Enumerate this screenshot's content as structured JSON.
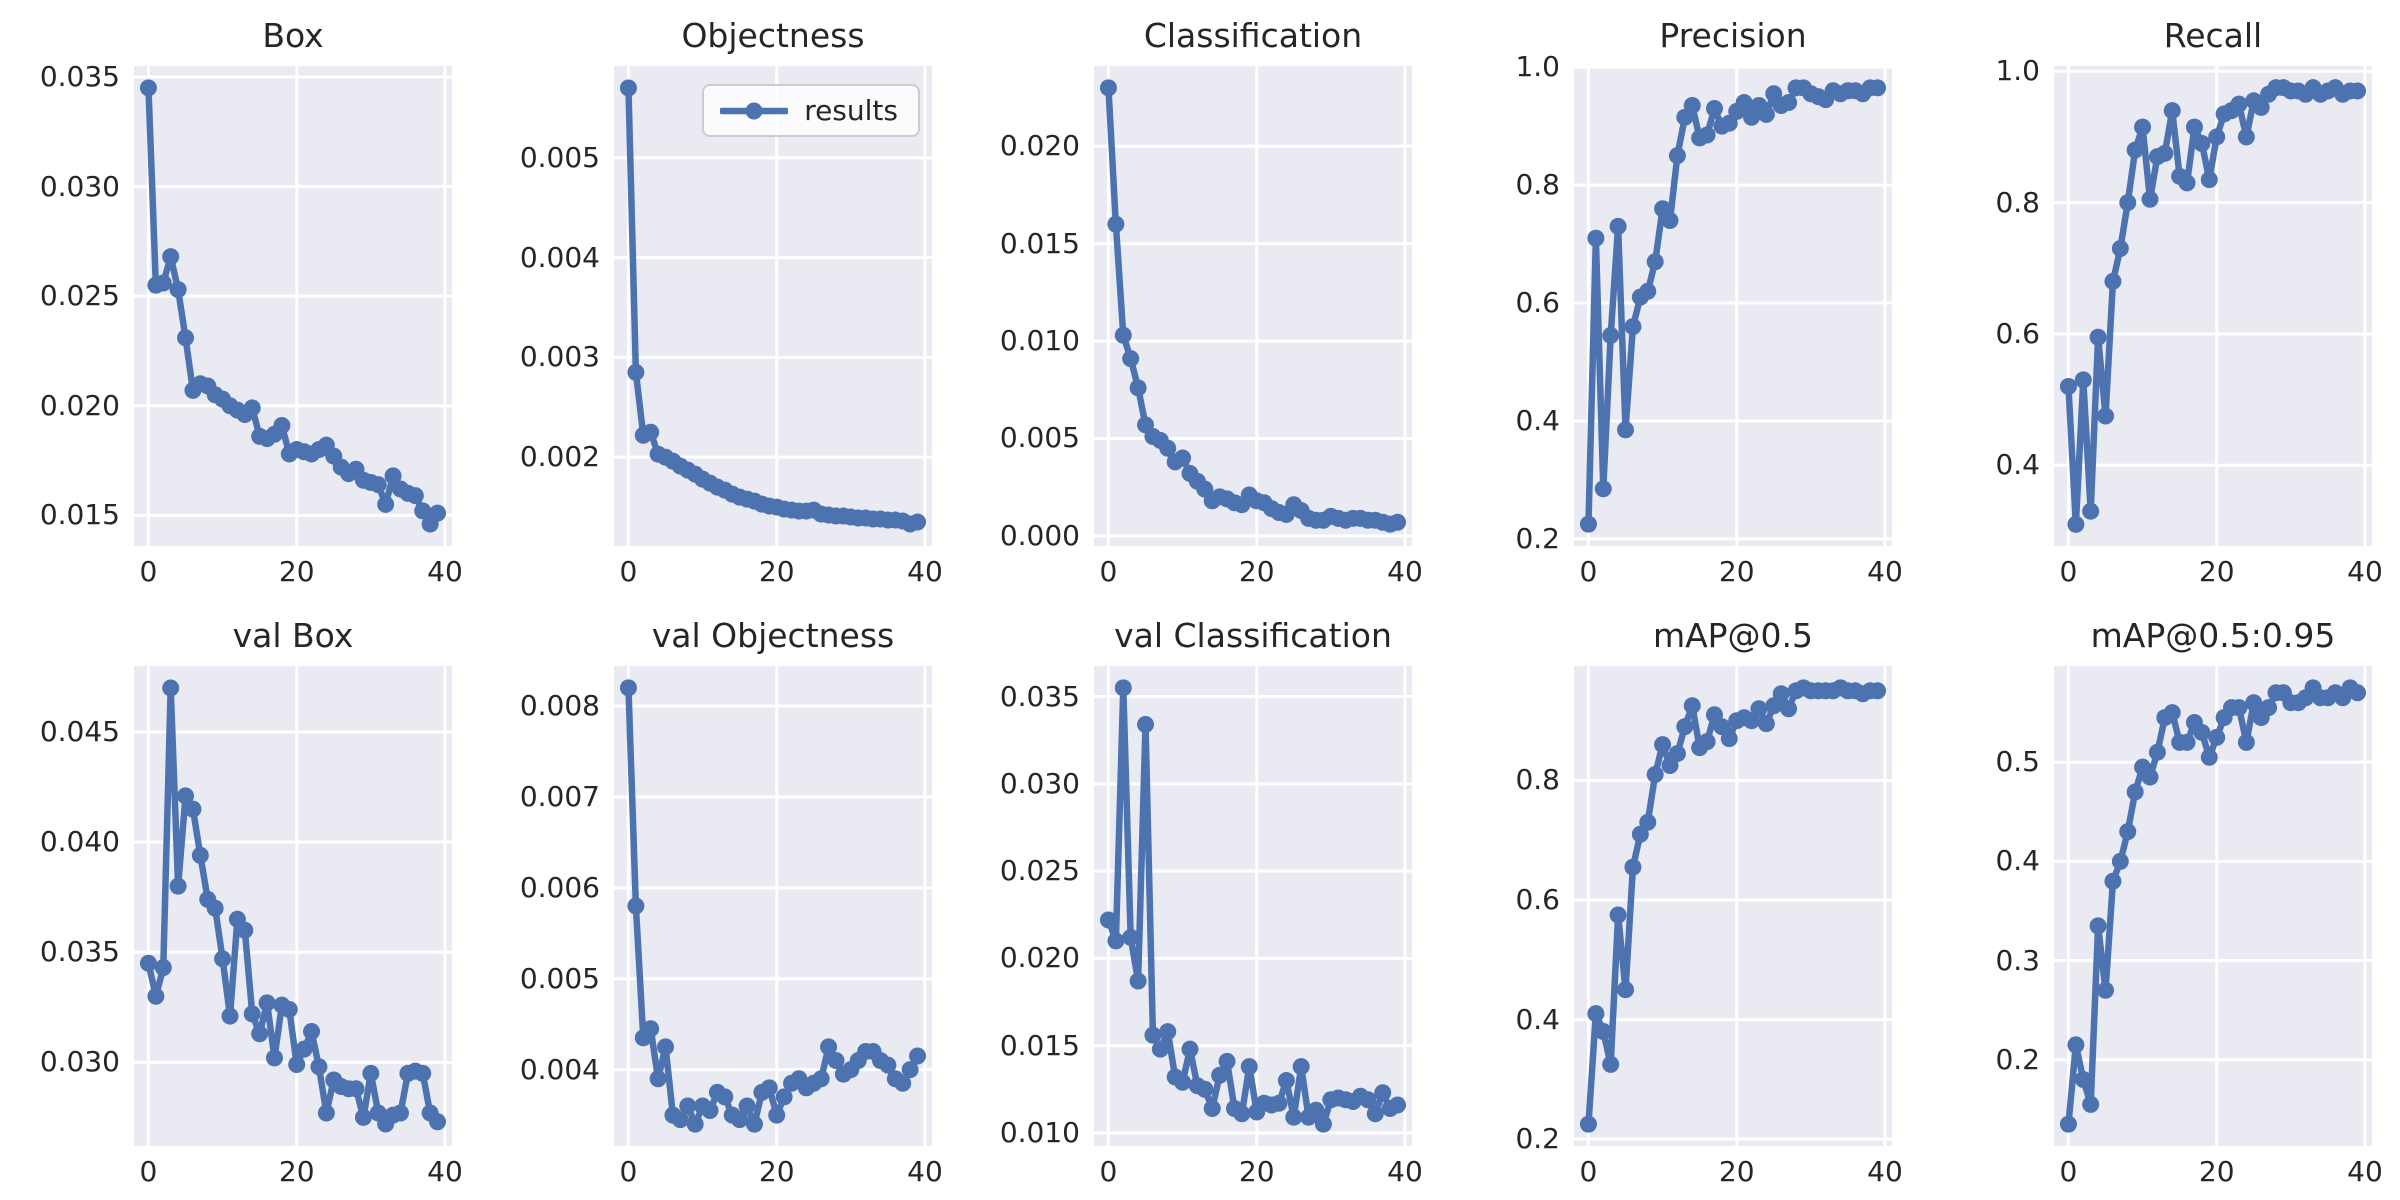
{
  "figure": {
    "legend_label": "results",
    "line_color": "#4c72b0",
    "axes_background": "#eaeaf2",
    "grid_color": "#ffffff",
    "text_color": "#262626",
    "legend_chart_index": 1
  },
  "chart_data": {
    "type": "line",
    "layout": "2 rows x 5 columns of subplots, shared x = training epoch",
    "series_name": "results",
    "legend_position": "upper right of Objectness subplot",
    "grid": true,
    "marker": "circle",
    "xlim": [
      -1.95,
      40.95
    ],
    "xticks": [
      0,
      20,
      40
    ],
    "xtick_labels": [
      "0",
      "20",
      "40"
    ],
    "x": [
      0,
      1,
      2,
      3,
      4,
      5,
      6,
      7,
      8,
      9,
      10,
      11,
      12,
      13,
      14,
      15,
      16,
      17,
      18,
      19,
      20,
      21,
      22,
      23,
      24,
      25,
      26,
      27,
      28,
      29,
      30,
      31,
      32,
      33,
      34,
      35,
      36,
      37,
      38,
      39
    ],
    "charts": [
      {
        "title": "Box",
        "ylim": [
          0.0136,
          0.0355
        ],
        "yticks": [
          0.015,
          0.02,
          0.025,
          0.03,
          0.035
        ],
        "ytick_labels": [
          "0.015",
          "0.020",
          "0.025",
          "0.030",
          "0.035"
        ],
        "values": [
          0.0345,
          0.0255,
          0.0256,
          0.0268,
          0.0253,
          0.0231,
          0.0207,
          0.021,
          0.0209,
          0.0205,
          0.0203,
          0.02,
          0.0198,
          0.0196,
          0.0199,
          0.0186,
          0.0185,
          0.0187,
          0.0191,
          0.0178,
          0.018,
          0.0179,
          0.0178,
          0.018,
          0.0182,
          0.0177,
          0.0172,
          0.0169,
          0.0171,
          0.0166,
          0.0165,
          0.0164,
          0.0155,
          0.0168,
          0.0162,
          0.016,
          0.0159,
          0.0152,
          0.0146,
          0.0151
        ]
      },
      {
        "title": "Objectness",
        "ylim": [
          0.00111,
          0.00592
        ],
        "yticks": [
          0.002,
          0.003,
          0.004,
          0.005
        ],
        "ytick_labels": [
          "0.002",
          "0.003",
          "0.004",
          "0.005"
        ],
        "values": [
          0.0057,
          0.00285,
          0.00222,
          0.00225,
          0.00203,
          0.002,
          0.00196,
          0.00191,
          0.00187,
          0.00183,
          0.00178,
          0.00174,
          0.0017,
          0.00167,
          0.00163,
          0.0016,
          0.00158,
          0.00156,
          0.00153,
          0.00151,
          0.0015,
          0.00148,
          0.00147,
          0.00146,
          0.00146,
          0.00147,
          0.00143,
          0.00142,
          0.00141,
          0.00141,
          0.0014,
          0.00139,
          0.00139,
          0.00138,
          0.00138,
          0.00137,
          0.00137,
          0.00136,
          0.00133,
          0.00135
        ]
      },
      {
        "title": "Classification",
        "ylim": [
          -0.00052,
          0.02412
        ],
        "yticks": [
          0.0,
          0.005,
          0.01,
          0.015,
          0.02
        ],
        "ytick_labels": [
          "0.000",
          "0.005",
          "0.010",
          "0.015",
          "0.020"
        ],
        "values": [
          0.023,
          0.016,
          0.0103,
          0.0091,
          0.0076,
          0.0057,
          0.0051,
          0.0049,
          0.0045,
          0.0038,
          0.004,
          0.0032,
          0.0028,
          0.0024,
          0.0018,
          0.002,
          0.0019,
          0.0017,
          0.0016,
          0.0021,
          0.0018,
          0.0017,
          0.0014,
          0.0012,
          0.0011,
          0.0016,
          0.0013,
          0.0009,
          0.0008,
          0.0008,
          0.001,
          0.0009,
          0.0008,
          0.0009,
          0.0009,
          0.0008,
          0.0008,
          0.0007,
          0.0006,
          0.0007
        ]
      },
      {
        "title": "Precision",
        "ylim": [
          0.188,
          1.002
        ],
        "yticks": [
          0.2,
          0.4,
          0.6,
          0.8,
          1.0
        ],
        "ytick_labels": [
          "0.2",
          "0.4",
          "0.6",
          "0.8",
          "1.0"
        ],
        "values": [
          0.225,
          0.71,
          0.285,
          0.545,
          0.73,
          0.385,
          0.56,
          0.61,
          0.62,
          0.67,
          0.76,
          0.74,
          0.85,
          0.915,
          0.935,
          0.88,
          0.885,
          0.93,
          0.9,
          0.905,
          0.925,
          0.94,
          0.915,
          0.935,
          0.92,
          0.955,
          0.935,
          0.94,
          0.965,
          0.965,
          0.955,
          0.95,
          0.945,
          0.96,
          0.955,
          0.96,
          0.96,
          0.955,
          0.965,
          0.965
        ]
      },
      {
        "title": "Recall",
        "ylim": [
          0.277,
          1.008
        ],
        "yticks": [
          0.4,
          0.6,
          0.8,
          1.0
        ],
        "ytick_labels": [
          "0.4",
          "0.6",
          "0.8",
          "1.0"
        ],
        "values": [
          0.52,
          0.31,
          0.53,
          0.33,
          0.595,
          0.475,
          0.68,
          0.73,
          0.8,
          0.88,
          0.915,
          0.805,
          0.87,
          0.875,
          0.94,
          0.84,
          0.83,
          0.915,
          0.89,
          0.835,
          0.9,
          0.935,
          0.94,
          0.95,
          0.9,
          0.955,
          0.945,
          0.965,
          0.975,
          0.975,
          0.97,
          0.97,
          0.965,
          0.975,
          0.965,
          0.97,
          0.975,
          0.965,
          0.97,
          0.97
        ]
      },
      {
        "title": "val Box",
        "ylim": [
          0.0262,
          0.048
        ],
        "yticks": [
          0.03,
          0.035,
          0.04,
          0.045
        ],
        "ytick_labels": [
          "0.030",
          "0.035",
          "0.040",
          "0.045"
        ],
        "values": [
          0.0345,
          0.033,
          0.0343,
          0.047,
          0.038,
          0.0421,
          0.0415,
          0.0394,
          0.0374,
          0.037,
          0.0347,
          0.0321,
          0.0365,
          0.036,
          0.0322,
          0.0313,
          0.0327,
          0.0302,
          0.0326,
          0.0324,
          0.0299,
          0.0306,
          0.0314,
          0.0298,
          0.0277,
          0.0292,
          0.0289,
          0.0288,
          0.0288,
          0.0275,
          0.0295,
          0.0277,
          0.0272,
          0.0276,
          0.0277,
          0.0295,
          0.0296,
          0.0295,
          0.0277,
          0.0273
        ]
      },
      {
        "title": "val Objectness",
        "ylim": [
          0.00316,
          0.00844
        ],
        "yticks": [
          0.004,
          0.005,
          0.006,
          0.007,
          0.008
        ],
        "ytick_labels": [
          "0.004",
          "0.005",
          "0.006",
          "0.007",
          "0.008"
        ],
        "values": [
          0.0082,
          0.0058,
          0.00435,
          0.00445,
          0.0039,
          0.00425,
          0.0035,
          0.00345,
          0.0036,
          0.0034,
          0.0036,
          0.00355,
          0.00375,
          0.0037,
          0.0035,
          0.00345,
          0.0036,
          0.0034,
          0.00375,
          0.0038,
          0.0035,
          0.0037,
          0.00385,
          0.0039,
          0.0038,
          0.00385,
          0.0039,
          0.00425,
          0.0041,
          0.00395,
          0.004,
          0.0041,
          0.0042,
          0.0042,
          0.0041,
          0.00405,
          0.0039,
          0.00385,
          0.004,
          0.00415
        ]
      },
      {
        "title": "val Classification",
        "ylim": [
          0.00925,
          0.03675
        ],
        "yticks": [
          0.01,
          0.015,
          0.02,
          0.025,
          0.03,
          0.035
        ],
        "ytick_labels": [
          "0.010",
          "0.015",
          "0.020",
          "0.025",
          "0.030",
          "0.035"
        ],
        "values": [
          0.0222,
          0.021,
          0.0355,
          0.0212,
          0.0187,
          0.0334,
          0.0156,
          0.0148,
          0.0158,
          0.0132,
          0.0129,
          0.0148,
          0.0127,
          0.0125,
          0.0114,
          0.0133,
          0.0141,
          0.0114,
          0.0111,
          0.0138,
          0.0112,
          0.0117,
          0.0116,
          0.0117,
          0.013,
          0.0109,
          0.0138,
          0.0109,
          0.0113,
          0.0105,
          0.0119,
          0.012,
          0.0119,
          0.0118,
          0.0121,
          0.0119,
          0.0111,
          0.0123,
          0.0114,
          0.0116
        ]
      },
      {
        "title": "mAP@0.5",
        "ylim": [
          0.1885,
          0.9915
        ],
        "yticks": [
          0.2,
          0.4,
          0.6,
          0.8
        ],
        "ytick_labels": [
          "0.2",
          "0.4",
          "0.6",
          "0.8"
        ],
        "values": [
          0.225,
          0.41,
          0.38,
          0.325,
          0.575,
          0.45,
          0.655,
          0.71,
          0.73,
          0.81,
          0.86,
          0.825,
          0.845,
          0.89,
          0.925,
          0.855,
          0.865,
          0.91,
          0.89,
          0.87,
          0.9,
          0.905,
          0.9,
          0.92,
          0.895,
          0.925,
          0.945,
          0.92,
          0.95,
          0.955,
          0.95,
          0.95,
          0.95,
          0.95,
          0.955,
          0.95,
          0.95,
          0.945,
          0.95,
          0.95
        ]
      },
      {
        "title": "mAP@0.5:0.95",
        "ylim": [
          0.113,
          0.597
        ],
        "yticks": [
          0.2,
          0.3,
          0.4,
          0.5
        ],
        "ytick_labels": [
          "0.2",
          "0.3",
          "0.4",
          "0.5"
        ],
        "values": [
          0.135,
          0.215,
          0.18,
          0.155,
          0.335,
          0.27,
          0.38,
          0.4,
          0.43,
          0.47,
          0.495,
          0.485,
          0.51,
          0.545,
          0.55,
          0.52,
          0.52,
          0.54,
          0.53,
          0.505,
          0.525,
          0.545,
          0.555,
          0.555,
          0.52,
          0.56,
          0.545,
          0.555,
          0.57,
          0.57,
          0.56,
          0.56,
          0.565,
          0.575,
          0.565,
          0.565,
          0.57,
          0.565,
          0.575,
          0.57
        ]
      }
    ]
  }
}
